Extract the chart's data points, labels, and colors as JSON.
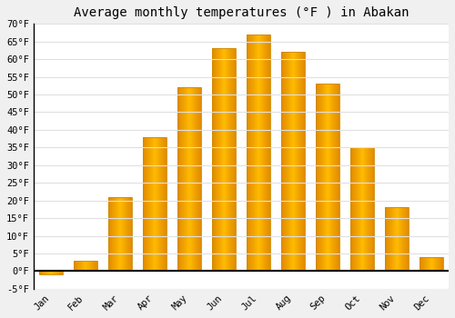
{
  "title": "Average monthly temperatures (°F ) in Abakan",
  "months": [
    "Jan",
    "Feb",
    "Mar",
    "Apr",
    "May",
    "Jun",
    "Jul",
    "Aug",
    "Sep",
    "Oct",
    "Nov",
    "Dec"
  ],
  "values": [
    -1,
    3,
    21,
    38,
    52,
    63,
    67,
    62,
    53,
    35,
    18,
    4
  ],
  "bar_color": "#FFAA00",
  "bar_edge_color": "#CC8800",
  "ylim": [
    -5,
    70
  ],
  "yticks": [
    -5,
    0,
    5,
    10,
    15,
    20,
    25,
    30,
    35,
    40,
    45,
    50,
    55,
    60,
    65,
    70
  ],
  "ytick_labels": [
    "-5°F",
    "0°F",
    "5°F",
    "10°F",
    "15°F",
    "20°F",
    "25°F",
    "30°F",
    "35°F",
    "40°F",
    "45°F",
    "50°F",
    "55°F",
    "60°F",
    "65°F",
    "70°F"
  ],
  "background_color": "#f0f0f0",
  "plot_bg_color": "#ffffff",
  "grid_color": "#e0e0e0",
  "title_fontsize": 10,
  "tick_fontsize": 7.5,
  "font_family": "monospace",
  "bar_width": 0.7
}
